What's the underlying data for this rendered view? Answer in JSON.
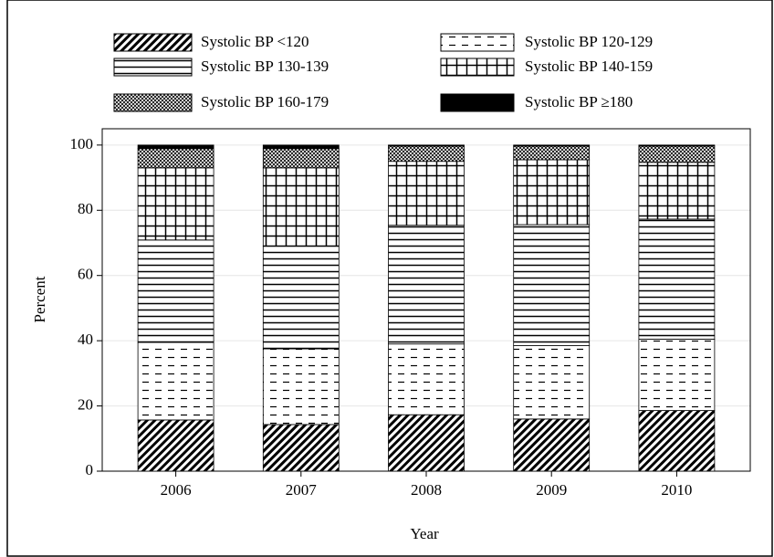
{
  "chart_data": {
    "type": "stacked_bar",
    "xlabel": "Year",
    "ylabel": "Percent",
    "categories": [
      "2006",
      "2007",
      "2008",
      "2009",
      "2010"
    ],
    "series": [
      {
        "name": "Systolic BP <120",
        "color": "#000000",
        "pattern": "diagonal",
        "values": [
          15.7,
          14.3,
          17.3,
          16,
          18.6
        ]
      },
      {
        "name": "Systolic BP 120-129",
        "color": "#000000",
        "pattern": "dashes",
        "values": [
          23.8,
          23.2,
          21.7,
          22.5,
          21.9
        ]
      },
      {
        "name": "Systolic BP 130-139",
        "color": "#000000",
        "pattern": "horizontal",
        "values": [
          31.4,
          31.5,
          36.4,
          37.1,
          36.8
        ]
      },
      {
        "name": "Systolic BP 140-159",
        "color": "#000000",
        "pattern": "grid",
        "values": [
          22.1,
          24,
          19.6,
          19.9,
          17.4
        ]
      },
      {
        "name": "Systolic BP 160-179",
        "color": "#000000",
        "pattern": "crosshatch",
        "values": [
          5.9,
          5.9,
          4.7,
          4.2,
          5
        ]
      },
      {
        "name": "Systolic BP ≥180",
        "color": "#000000",
        "pattern": "solid",
        "values": [
          1.1,
          1.1,
          0.3,
          0.3,
          0.3
        ]
      }
    ],
    "ylim": [
      0,
      105
    ],
    "yticks": [
      0,
      20,
      40,
      60,
      80,
      100
    ],
    "grid": true
  }
}
